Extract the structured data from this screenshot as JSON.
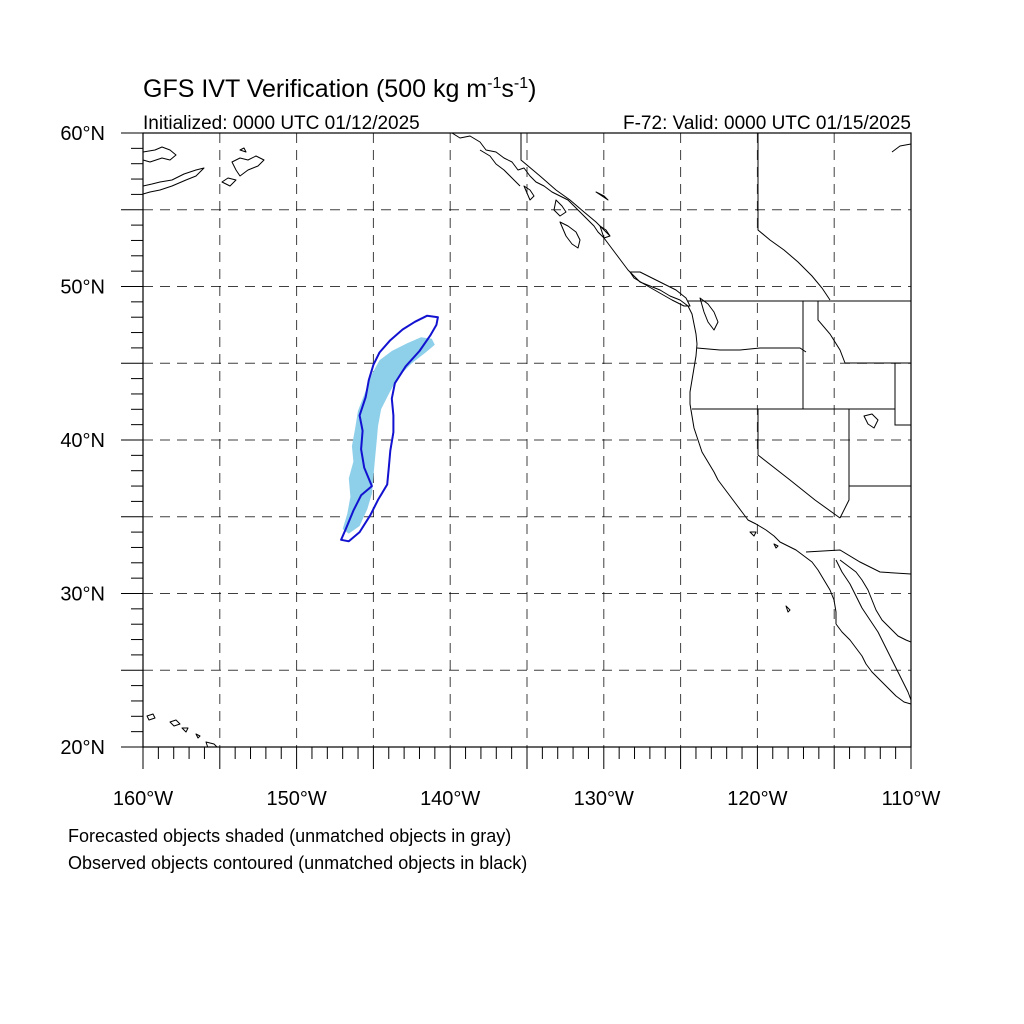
{
  "title": {
    "main": "GFS IVT Verification (500 kg m",
    "sup1": "-1",
    "mid": "s",
    "sup2": "-1",
    "end": ")"
  },
  "initialized": "Initialized: 0000 UTC 01/12/2025",
  "valid": "F-72: Valid: 0000 UTC 01/15/2025",
  "map": {
    "lon_range": [
      -160,
      -110
    ],
    "lat_range": [
      20,
      60
    ],
    "grid_lines": "dashed",
    "lat_labels": [
      {
        "lat": 60,
        "label": "60°N"
      },
      {
        "lat": 50,
        "label": "50°N"
      },
      {
        "lat": 40,
        "label": "40°N"
      },
      {
        "lat": 30,
        "label": "30°N"
      },
      {
        "lat": 20,
        "label": "20°N"
      }
    ],
    "lon_labels": [
      {
        "lon": -160,
        "label": "160°W"
      },
      {
        "lon": -150,
        "label": "150°W"
      },
      {
        "lon": -140,
        "label": "140°W"
      },
      {
        "lon": -130,
        "label": "130°W"
      },
      {
        "lon": -120,
        "label": "120°W"
      },
      {
        "lon": -110,
        "label": "110°W"
      }
    ],
    "colors": {
      "forecast_fill": "#8ecfea",
      "observed_contour": "#1212d0",
      "lines": "#000000"
    },
    "forecast_object": {
      "description_visible": false,
      "polygon": [
        [
          -141.2,
          46.6
        ],
        [
          -141.9,
          46.7
        ],
        [
          -142.8,
          46.3
        ],
        [
          -143.8,
          45.8
        ],
        [
          -144.6,
          45.2
        ],
        [
          -145.1,
          44.3
        ],
        [
          -145.5,
          43.2
        ],
        [
          -146.0,
          41.9
        ],
        [
          -146.2,
          40.7
        ],
        [
          -146.4,
          39.6
        ],
        [
          -146.3,
          38.6
        ],
        [
          -146.6,
          37.5
        ],
        [
          -146.5,
          36.3
        ],
        [
          -146.7,
          35.2
        ],
        [
          -147.0,
          34.2
        ],
        [
          -146.6,
          33.9
        ],
        [
          -145.9,
          34.4
        ],
        [
          -145.4,
          35.5
        ],
        [
          -145.1,
          36.5
        ],
        [
          -145.0,
          37.6
        ],
        [
          -144.9,
          38.7
        ],
        [
          -144.8,
          39.8
        ],
        [
          -144.7,
          40.9
        ],
        [
          -144.5,
          42.0
        ],
        [
          -144.0,
          43.0
        ],
        [
          -143.4,
          44.1
        ],
        [
          -142.5,
          45.0
        ],
        [
          -141.6,
          45.7
        ],
        [
          -141.0,
          46.2
        ]
      ]
    },
    "observed_object": {
      "polygon": [
        [
          -140.8,
          48.0
        ],
        [
          -141.5,
          48.1
        ],
        [
          -142.3,
          47.7
        ],
        [
          -143.1,
          47.2
        ],
        [
          -143.9,
          46.5
        ],
        [
          -144.6,
          45.7
        ],
        [
          -145.0,
          44.9
        ],
        [
          -145.3,
          43.9
        ],
        [
          -145.5,
          42.8
        ],
        [
          -145.9,
          41.6
        ],
        [
          -145.7,
          40.6
        ],
        [
          -145.8,
          39.4
        ],
        [
          -145.6,
          38.2
        ],
        [
          -145.1,
          37.0
        ],
        [
          -145.8,
          36.4
        ],
        [
          -146.3,
          35.4
        ],
        [
          -146.8,
          34.2
        ],
        [
          -147.1,
          33.5
        ],
        [
          -146.6,
          33.4
        ],
        [
          -145.9,
          34.0
        ],
        [
          -145.2,
          35.1
        ],
        [
          -144.7,
          36.1
        ],
        [
          -144.1,
          37.1
        ],
        [
          -144.0,
          38.2
        ],
        [
          -143.9,
          39.3
        ],
        [
          -143.7,
          40.5
        ],
        [
          -143.7,
          41.6
        ],
        [
          -143.8,
          42.7
        ],
        [
          -143.6,
          43.7
        ],
        [
          -142.9,
          44.8
        ],
        [
          -142.0,
          45.8
        ],
        [
          -141.3,
          46.8
        ],
        [
          -140.9,
          47.5
        ]
      ]
    }
  },
  "notes": [
    "Forecasted objects shaded (unmatched objects in gray)",
    "Observed objects contoured (unmatched objects in black)"
  ]
}
